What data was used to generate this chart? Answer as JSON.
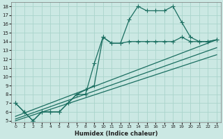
{
  "background_color": "#cbe8e3",
  "grid_color": "#aad4cc",
  "line_color": "#1a6e60",
  "xlim": [
    -0.5,
    23.5
  ],
  "ylim": [
    4.8,
    18.5
  ],
  "xlabel": "Humidex (Indice chaleur)",
  "xticks": [
    0,
    1,
    2,
    3,
    4,
    5,
    6,
    7,
    8,
    9,
    10,
    11,
    12,
    13,
    14,
    15,
    16,
    17,
    18,
    19,
    20,
    21,
    22,
    23
  ],
  "yticks": [
    5,
    6,
    7,
    8,
    9,
    10,
    11,
    12,
    13,
    14,
    15,
    16,
    17,
    18
  ],
  "series": [
    {
      "x": [
        0,
        1,
        2,
        3,
        4,
        5,
        6,
        7,
        8,
        9,
        10,
        11,
        12,
        13,
        14,
        15,
        16,
        17,
        18,
        19,
        20,
        21,
        22,
        23
      ],
      "y": [
        7,
        6,
        5,
        6,
        6,
        6,
        7,
        8,
        8.5,
        9,
        14.5,
        13.8,
        13.8,
        16.5,
        18,
        17.5,
        17.5,
        17.5,
        18,
        16.2,
        14.5,
        14,
        14,
        14.2
      ],
      "marker": "+",
      "markersize": 4,
      "linewidth": 0.9
    },
    {
      "x": [
        0,
        1,
        2,
        3,
        4,
        5,
        6,
        7,
        8,
        9,
        10,
        11,
        12,
        13,
        14,
        15,
        16,
        17,
        18,
        19,
        20,
        21,
        22,
        23
      ],
      "y": [
        7,
        6,
        5,
        6,
        6,
        6,
        7,
        8,
        8,
        11.5,
        14.5,
        13.8,
        13.8,
        14,
        14,
        14,
        14,
        14,
        14,
        14.5,
        14,
        14,
        14,
        14.2
      ],
      "marker": "+",
      "markersize": 4,
      "linewidth": 0.9
    },
    {
      "x": [
        0,
        23
      ],
      "y": [
        5.5,
        14.2
      ],
      "marker": null,
      "markersize": 0,
      "linewidth": 0.9
    },
    {
      "x": [
        0,
        23
      ],
      "y": [
        5.2,
        13.3
      ],
      "marker": null,
      "markersize": 0,
      "linewidth": 0.9
    },
    {
      "x": [
        0,
        23
      ],
      "y": [
        5.0,
        12.5
      ],
      "marker": null,
      "markersize": 0,
      "linewidth": 0.9
    }
  ]
}
